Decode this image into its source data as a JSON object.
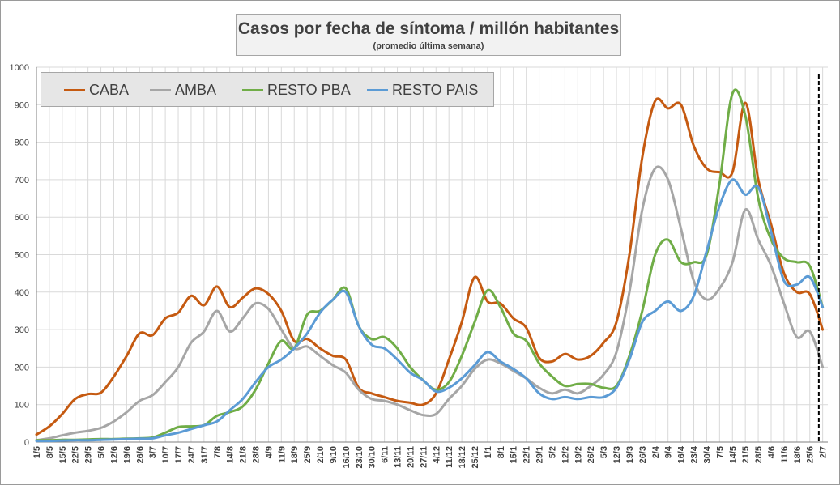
{
  "chart_data": {
    "type": "line",
    "title": "Casos por fecha de síntoma / millón habitantes",
    "subtitle": "(promedio última semana)",
    "xlabel": "",
    "ylabel": "",
    "ylim": [
      0,
      1000
    ],
    "yticks": [
      0,
      100,
      200,
      300,
      400,
      500,
      600,
      700,
      800,
      900,
      1000
    ],
    "grid": true,
    "legend_position": "top-left",
    "x_tick_labels": [
      "1/5",
      "8/5",
      "15/5",
      "22/5",
      "29/5",
      "5/6",
      "12/6",
      "19/6",
      "26/6",
      "3/7",
      "10/7",
      "17/7",
      "24/7",
      "31/7",
      "7/8",
      "14/8",
      "21/8",
      "28/8",
      "4/9",
      "11/9",
      "18/9",
      "25/9",
      "2/10",
      "9/10",
      "16/10",
      "23/10",
      "30/10",
      "6/11",
      "13/11",
      "20/11",
      "27/11",
      "4/12",
      "11/12",
      "18/12",
      "25/12",
      "1/1",
      "8/1",
      "15/1",
      "22/1",
      "29/1",
      "5/2",
      "12/2",
      "19/2",
      "26/2",
      "5/3",
      "12/3",
      "19/3",
      "26/3",
      "2/4",
      "9/4",
      "16/4",
      "23/4",
      "30/4",
      "7/5",
      "14/5",
      "21/5",
      "28/5",
      "4/6",
      "11/6",
      "18/6",
      "25/6",
      "2/7"
    ],
    "x_start": "1/5",
    "x_step_days": 7,
    "vertical_marker_week": 60.7,
    "series": [
      {
        "name": "CABA",
        "color": "#c55a11",
        "values": [
          20,
          42,
          75,
          115,
          128,
          132,
          175,
          230,
          290,
          285,
          330,
          345,
          390,
          365,
          415,
          360,
          385,
          410,
          395,
          350,
          270,
          275,
          250,
          230,
          220,
          145,
          130,
          120,
          110,
          105,
          100,
          130,
          220,
          320,
          440,
          375,
          370,
          330,
          305,
          225,
          215,
          235,
          220,
          230,
          265,
          320,
          500,
          760,
          910,
          890,
          900,
          790,
          730,
          720,
          720,
          905,
          700,
          580,
          450,
          400,
          395,
          300
        ]
      },
      {
        "name": "AMBA",
        "color": "#a6a6a6",
        "values": [
          5,
          10,
          18,
          25,
          30,
          38,
          55,
          80,
          110,
          125,
          160,
          200,
          265,
          295,
          350,
          295,
          330,
          370,
          355,
          300,
          250,
          255,
          230,
          205,
          185,
          140,
          115,
          110,
          100,
          85,
          72,
          75,
          115,
          150,
          195,
          220,
          210,
          190,
          170,
          145,
          130,
          140,
          130,
          150,
          180,
          240,
          400,
          620,
          730,
          700,
          570,
          430,
          380,
          410,
          480,
          620,
          540,
          470,
          370,
          280,
          295,
          200
        ]
      },
      {
        "name": "RESTO PBA",
        "color": "#70ad47",
        "values": [
          5,
          5,
          6,
          6,
          7,
          8,
          8,
          9,
          10,
          12,
          25,
          40,
          42,
          45,
          70,
          80,
          95,
          140,
          210,
          270,
          250,
          340,
          350,
          380,
          410,
          310,
          275,
          280,
          250,
          200,
          165,
          140,
          160,
          230,
          320,
          405,
          360,
          290,
          270,
          210,
          175,
          150,
          155,
          155,
          145,
          150,
          230,
          350,
          500,
          540,
          480,
          480,
          500,
          690,
          930,
          870,
          650,
          540,
          490,
          480,
          470,
          360
        ]
      },
      {
        "name": "RESTO PAIS",
        "color": "#5b9bd5",
        "values": [
          3,
          3,
          4,
          5,
          5,
          6,
          7,
          8,
          9,
          10,
          18,
          25,
          35,
          45,
          55,
          85,
          115,
          160,
          200,
          220,
          250,
          290,
          345,
          380,
          400,
          310,
          260,
          250,
          220,
          185,
          165,
          135,
          145,
          170,
          205,
          240,
          215,
          195,
          170,
          130,
          115,
          120,
          115,
          120,
          120,
          145,
          220,
          320,
          350,
          375,
          350,
          390,
          510,
          630,
          700,
          660,
          680,
          560,
          430,
          420,
          440,
          360
        ]
      }
    ]
  }
}
